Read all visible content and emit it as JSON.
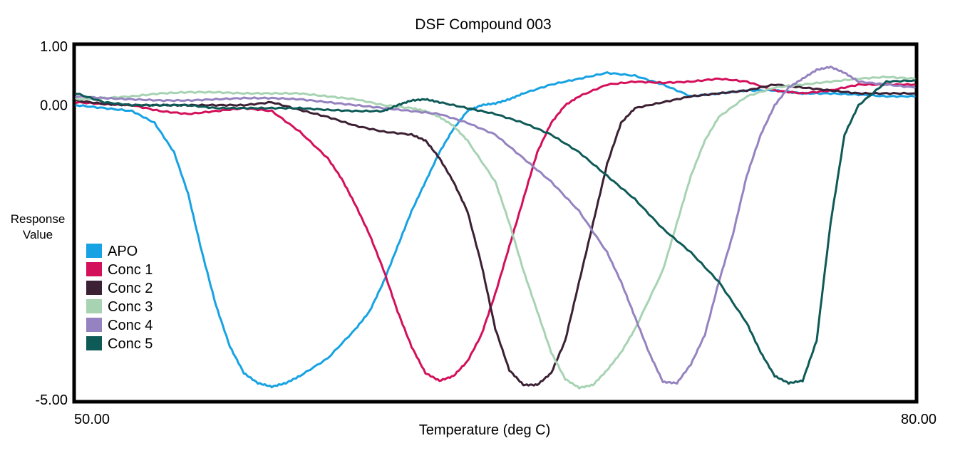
{
  "chart_data": {
    "type": "line",
    "title": "DSF Compound 003",
    "xlabel": "Temperature (deg C)",
    "ylabel": [
      "Response",
      "Value"
    ],
    "xlim": [
      50,
      80
    ],
    "ylim": [
      -5,
      1
    ],
    "x_ticks": [
      "50.00",
      "80.00"
    ],
    "y_ticks": [
      "1.00",
      "0.00",
      "-5.00"
    ],
    "y_tick_values": [
      1,
      0,
      -5
    ],
    "grid": false,
    "legend_position": "left",
    "series": [
      {
        "name": "APO",
        "color": "#17a2e3",
        "x": [
          50.0,
          51.0,
          52.0,
          52.8,
          53.5,
          54.0,
          54.5,
          55.0,
          55.5,
          56.0,
          56.5,
          57.0,
          57.5,
          58.0,
          59.0,
          60.0,
          60.5,
          61.0,
          61.5,
          62.0,
          62.5,
          63.0,
          63.5,
          64.0,
          64.5,
          65.0,
          65.5,
          66.0,
          67.0,
          68.0,
          69.0,
          70.0,
          71.0,
          72.0,
          73.0,
          74.0,
          75.0,
          76.0,
          77.0,
          78.0,
          79.0,
          80.0
        ],
        "y": [
          0.0,
          -0.05,
          -0.1,
          -0.3,
          -0.8,
          -1.5,
          -2.5,
          -3.4,
          -4.1,
          -4.55,
          -4.72,
          -4.78,
          -4.72,
          -4.6,
          -4.3,
          -3.8,
          -3.5,
          -3.0,
          -2.4,
          -1.8,
          -1.3,
          -0.8,
          -0.4,
          -0.1,
          0.0,
          0.03,
          0.1,
          0.2,
          0.35,
          0.45,
          0.55,
          0.5,
          0.35,
          0.15,
          0.2,
          0.25,
          0.25,
          0.2,
          0.2,
          0.18,
          0.15,
          0.15
        ]
      },
      {
        "name": "Conc 1",
        "color": "#d3105a",
        "x": [
          50.0,
          51.0,
          52.0,
          53.0,
          54.0,
          55.0,
          56.0,
          57.0,
          58.0,
          59.0,
          59.5,
          60.0,
          60.5,
          61.0,
          61.5,
          62.0,
          62.5,
          63.0,
          63.5,
          64.0,
          64.5,
          65.0,
          65.5,
          66.0,
          66.5,
          67.0,
          67.5,
          68.0,
          69.0,
          70.0,
          71.0,
          72.0,
          73.0,
          74.0,
          75.0,
          76.0,
          77.0,
          78.0,
          79.0,
          80.0
        ],
        "y": [
          0.05,
          0.02,
          0.0,
          -0.1,
          -0.15,
          -0.1,
          -0.05,
          -0.1,
          -0.45,
          -0.9,
          -1.25,
          -1.7,
          -2.2,
          -2.8,
          -3.5,
          -4.1,
          -4.55,
          -4.68,
          -4.6,
          -4.35,
          -3.9,
          -3.2,
          -2.4,
          -1.6,
          -0.8,
          -0.3,
          0.0,
          0.15,
          0.35,
          0.4,
          0.38,
          0.4,
          0.45,
          0.4,
          0.25,
          0.2,
          0.25,
          0.35,
          0.35,
          0.35
        ]
      },
      {
        "name": "Conc 2",
        "color": "#3c2033",
        "x": [
          50.0,
          51.0,
          52.0,
          53.0,
          54.0,
          55.0,
          56.0,
          57.0,
          58.0,
          59.0,
          60.0,
          61.0,
          62.0,
          62.5,
          63.0,
          63.5,
          64.0,
          64.5,
          65.0,
          65.5,
          66.0,
          66.5,
          67.0,
          67.5,
          68.0,
          68.5,
          69.0,
          69.5,
          70.0,
          71.0,
          72.0,
          73.0,
          74.0,
          75.0,
          76.0,
          77.0,
          78.0,
          79.0,
          80.0
        ],
        "y": [
          0.08,
          0.02,
          0.0,
          0.0,
          0.0,
          0.0,
          0.0,
          0.05,
          -0.08,
          -0.2,
          -0.35,
          -0.45,
          -0.5,
          -0.6,
          -0.9,
          -1.3,
          -1.8,
          -2.7,
          -3.8,
          -4.5,
          -4.75,
          -4.75,
          -4.55,
          -4.0,
          -3.0,
          -2.0,
          -1.0,
          -0.3,
          -0.05,
          0.05,
          0.15,
          0.2,
          0.25,
          0.35,
          0.3,
          0.25,
          0.2,
          0.2,
          0.2
        ]
      },
      {
        "name": "Conc 3",
        "color": "#a7d3b3",
        "x": [
          50.0,
          51.0,
          52.0,
          53.0,
          54.0,
          55.0,
          56.0,
          57.0,
          58.0,
          59.0,
          60.0,
          61.0,
          62.0,
          62.5,
          63.0,
          63.5,
          64.0,
          65.0,
          65.5,
          66.0,
          66.5,
          67.0,
          67.5,
          68.0,
          68.5,
          69.0,
          69.5,
          70.0,
          71.0,
          71.5,
          72.0,
          72.5,
          73.0,
          74.0,
          75.0,
          76.0,
          77.0,
          78.0,
          79.0,
          80.0
        ],
        "y": [
          0.1,
          0.12,
          0.15,
          0.2,
          0.22,
          0.22,
          0.2,
          0.2,
          0.2,
          0.15,
          0.1,
          0.0,
          -0.05,
          -0.1,
          -0.2,
          -0.35,
          -0.6,
          -1.3,
          -2.0,
          -2.8,
          -3.5,
          -4.2,
          -4.65,
          -4.8,
          -4.75,
          -4.5,
          -4.2,
          -3.8,
          -2.8,
          -2.0,
          -1.2,
          -0.6,
          -0.2,
          0.15,
          0.3,
          0.35,
          0.4,
          0.45,
          0.48,
          0.45
        ]
      },
      {
        "name": "Conc 4",
        "color": "#9582c0",
        "x": [
          50.0,
          51.0,
          52.0,
          53.0,
          54.0,
          55.0,
          56.0,
          57.0,
          58.0,
          59.0,
          60.0,
          61.0,
          62.0,
          63.0,
          64.0,
          65.0,
          66.0,
          67.0,
          68.0,
          69.0,
          69.5,
          70.0,
          70.5,
          71.0,
          71.5,
          72.0,
          72.5,
          73.0,
          73.5,
          74.0,
          74.5,
          75.0,
          75.5,
          76.0,
          76.5,
          77.0,
          77.5,
          78.0,
          79.0,
          80.0
        ],
        "y": [
          0.15,
          0.12,
          0.1,
          0.08,
          0.08,
          0.1,
          0.12,
          0.12,
          0.1,
          0.05,
          0.0,
          -0.05,
          -0.1,
          -0.15,
          -0.3,
          -0.5,
          -0.9,
          -1.3,
          -1.8,
          -2.5,
          -3.0,
          -3.6,
          -4.2,
          -4.7,
          -4.72,
          -4.4,
          -3.9,
          -3.0,
          -2.2,
          -1.2,
          -0.5,
          0.0,
          0.3,
          0.45,
          0.6,
          0.65,
          0.55,
          0.4,
          0.35,
          0.3
        ]
      },
      {
        "name": "Conc 5",
        "color": "#0e5a57",
        "x": [
          50.0,
          51.0,
          52.0,
          53.0,
          54.0,
          55.0,
          56.0,
          57.0,
          58.0,
          59.0,
          60.0,
          61.0,
          61.5,
          62.0,
          62.5,
          63.0,
          64.0,
          65.0,
          66.0,
          67.0,
          68.0,
          69.0,
          70.0,
          71.0,
          72.0,
          73.0,
          74.0,
          74.5,
          75.0,
          75.5,
          76.0,
          76.5,
          77.0,
          77.5,
          78.0,
          79.0,
          80.0
        ],
        "y": [
          0.2,
          0.05,
          0.0,
          0.0,
          0.0,
          -0.05,
          -0.05,
          -0.05,
          -0.05,
          -0.08,
          -0.1,
          -0.1,
          0.0,
          0.08,
          0.1,
          0.05,
          -0.05,
          -0.15,
          -0.3,
          -0.5,
          -0.8,
          -1.2,
          -1.6,
          -2.1,
          -2.5,
          -3.0,
          -3.7,
          -4.2,
          -4.6,
          -4.72,
          -4.68,
          -4.0,
          -2.0,
          -0.5,
          0.0,
          0.4,
          0.42
        ]
      }
    ]
  }
}
